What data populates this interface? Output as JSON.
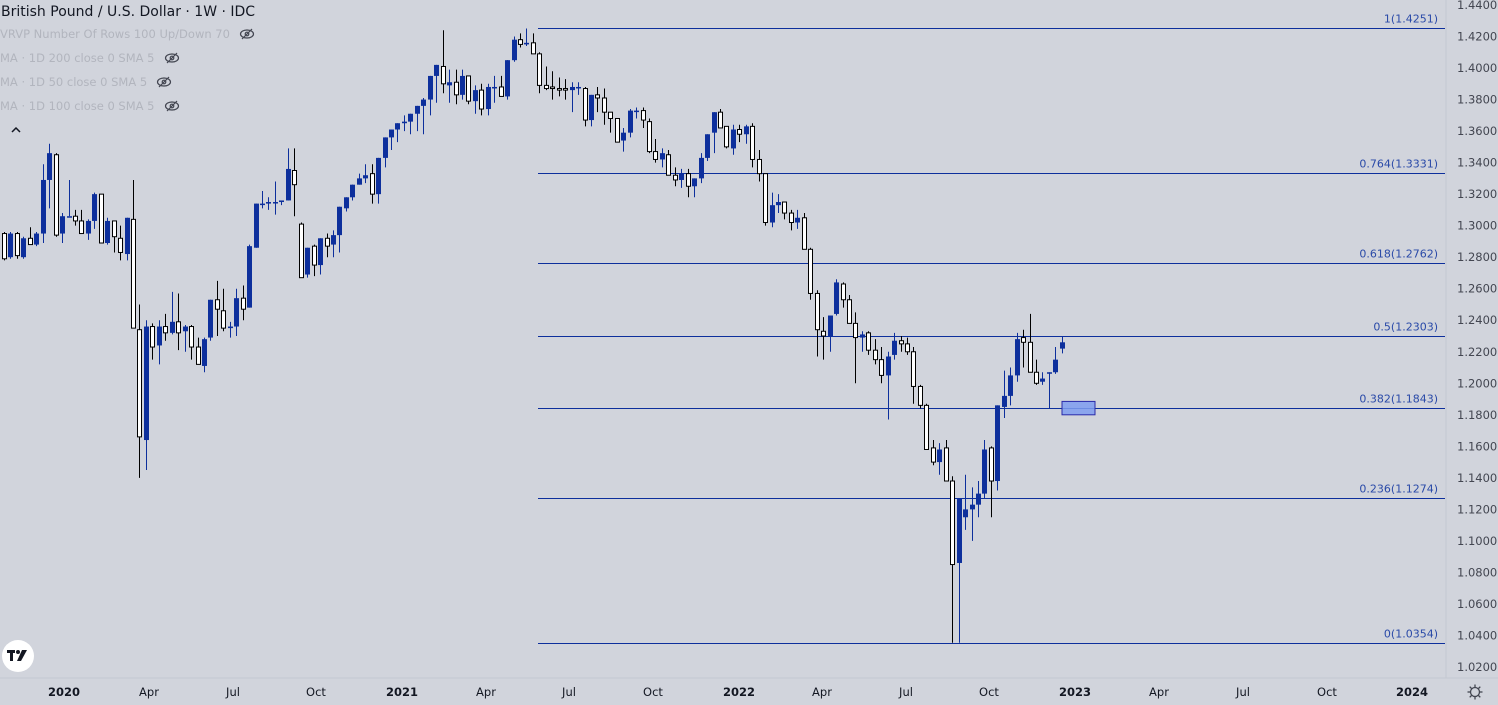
{
  "legend": {
    "title": "British Pound / U.S. Dollar · 1W · IDC",
    "indicators": [
      {
        "label": "VRVP Number Of Rows 100 Up/Down 70",
        "icon": "eye-hidden-icon"
      },
      {
        "label": "MA · 1D 200 close 0 SMA 5",
        "icon": "eye-hidden-icon"
      },
      {
        "label": "MA · 1D 50 close 0 SMA 5",
        "icon": "eye-hidden-icon"
      },
      {
        "label": "MA · 1D 100 close 0 SMA 5",
        "icon": "eye-hidden-icon"
      }
    ]
  },
  "colors": {
    "background": "#d1d4dc",
    "up_candle": "#0d2f9c",
    "down_candle_fill": "#ffffff",
    "down_candle_border": "#000000",
    "fib_line": "#0d2f9c",
    "fib_label": "#2a4aa8",
    "axis_text": "#434651",
    "zone_fill": "#7f9cf0",
    "zone_border": "#2a2aa8"
  },
  "chart_data": {
    "type": "candlestick",
    "title": "British Pound / U.S. Dollar · 1W · IDC",
    "xlabel": "",
    "ylabel": "",
    "ylim": [
      1.02,
      1.44
    ],
    "grid": false,
    "price_ticks": [
      "1.4400",
      "1.4200",
      "1.4000",
      "1.3800",
      "1.3600",
      "1.3400",
      "1.3200",
      "1.3000",
      "1.2800",
      "1.2600",
      "1.2400",
      "1.2200",
      "1.2000",
      "1.1800",
      "1.1600",
      "1.1400",
      "1.1200",
      "1.1000",
      "1.0800",
      "1.0600",
      "1.0400",
      "1.0200"
    ],
    "time_ticks": [
      {
        "label": "2020",
        "x": 64,
        "bold": true
      },
      {
        "label": "Apr",
        "x": 149,
        "bold": false
      },
      {
        "label": "Jul",
        "x": 233,
        "bold": false
      },
      {
        "label": "Oct",
        "x": 316,
        "bold": false
      },
      {
        "label": "2021",
        "x": 402,
        "bold": true
      },
      {
        "label": "Apr",
        "x": 486,
        "bold": false
      },
      {
        "label": "Jul",
        "x": 569,
        "bold": false
      },
      {
        "label": "Oct",
        "x": 653,
        "bold": false
      },
      {
        "label": "2022",
        "x": 739,
        "bold": true
      },
      {
        "label": "Apr",
        "x": 822,
        "bold": false
      },
      {
        "label": "Jul",
        "x": 906,
        "bold": false
      },
      {
        "label": "Oct",
        "x": 989,
        "bold": false
      },
      {
        "label": "2023",
        "x": 1075,
        "bold": true
      },
      {
        "label": "Apr",
        "x": 1159,
        "bold": false
      },
      {
        "label": "Jul",
        "x": 1243,
        "bold": false
      },
      {
        "label": "Oct",
        "x": 1327,
        "bold": false
      },
      {
        "label": "2024",
        "x": 1412,
        "bold": true
      }
    ],
    "fibonacci": {
      "x_start": 538,
      "x_end": 1445,
      "levels": [
        {
          "ratio": "1",
          "price": 1.4251,
          "label": "1(1.4251)"
        },
        {
          "ratio": "0.764",
          "price": 1.3331,
          "label": "0.764(1.3331)"
        },
        {
          "ratio": "0.618",
          "price": 1.2762,
          "label": "0.618(1.2762)"
        },
        {
          "ratio": "0.5",
          "price": 1.2303,
          "label": "0.5(1.2303)"
        },
        {
          "ratio": "0.382",
          "price": 1.1843,
          "label": "0.382(1.1843)"
        },
        {
          "ratio": "0.236",
          "price": 1.1274,
          "label": "0.236(1.1274)"
        },
        {
          "ratio": "0",
          "price": 1.0354,
          "label": "0(1.0354)"
        }
      ]
    },
    "highlight_zone": {
      "x1": 1062,
      "x2": 1095,
      "price_top": 1.1885,
      "price_bottom": 1.18
    },
    "candle_spacing_px": 6.45,
    "first_candle_x": 4,
    "candles": [
      [
        1.295,
        1.296,
        1.278,
        1.279
      ],
      [
        1.28,
        1.296,
        1.279,
        1.295
      ],
      [
        1.295,
        1.296,
        1.279,
        1.281
      ],
      [
        1.28,
        1.293,
        1.279,
        1.292
      ],
      [
        1.292,
        1.299,
        1.29,
        1.288
      ],
      [
        1.288,
        1.296,
        1.287,
        1.295
      ],
      [
        1.295,
        1.339,
        1.289,
        1.329
      ],
      [
        1.329,
        1.352,
        1.311,
        1.346
      ],
      [
        1.345,
        1.346,
        1.293,
        1.294
      ],
      [
        1.295,
        1.308,
        1.289,
        1.306
      ],
      [
        1.306,
        1.329,
        1.306,
        1.306
      ],
      [
        1.306,
        1.31,
        1.3,
        1.303
      ],
      [
        1.303,
        1.31,
        1.297,
        1.295
      ],
      [
        1.295,
        1.304,
        1.291,
        1.303
      ],
      [
        1.303,
        1.321,
        1.298,
        1.32
      ],
      [
        1.32,
        1.32,
        1.295,
        1.289
      ],
      [
        1.289,
        1.305,
        1.288,
        1.303
      ],
      [
        1.303,
        1.303,
        1.283,
        1.293
      ],
      [
        1.292,
        1.3,
        1.278,
        1.283
      ],
      [
        1.282,
        1.305,
        1.278,
        1.305
      ],
      [
        1.304,
        1.329,
        1.257,
        1.235
      ],
      [
        1.234,
        1.25,
        1.14,
        1.166
      ],
      [
        1.164,
        1.24,
        1.145,
        1.236
      ],
      [
        1.236,
        1.238,
        1.215,
        1.223
      ],
      [
        1.224,
        1.24,
        1.212,
        1.236
      ],
      [
        1.236,
        1.244,
        1.227,
        1.232
      ],
      [
        1.232,
        1.258,
        1.231,
        1.239
      ],
      [
        1.239,
        1.257,
        1.221,
        1.232
      ],
      [
        1.233,
        1.237,
        1.22,
        1.236
      ],
      [
        1.236,
        1.237,
        1.215,
        1.223
      ],
      [
        1.223,
        1.229,
        1.217,
        1.212
      ],
      [
        1.211,
        1.229,
        1.207,
        1.228
      ],
      [
        1.229,
        1.249,
        1.227,
        1.253
      ],
      [
        1.253,
        1.265,
        1.23,
        1.247
      ],
      [
        1.246,
        1.26,
        1.233,
        1.235
      ],
      [
        1.235,
        1.239,
        1.229,
        1.236
      ],
      [
        1.236,
        1.26,
        1.23,
        1.254
      ],
      [
        1.254,
        1.262,
        1.24,
        1.247
      ],
      [
        1.248,
        1.288,
        1.248,
        1.287
      ],
      [
        1.286,
        1.31,
        1.292,
        1.314
      ],
      [
        1.314,
        1.322,
        1.311,
        1.314
      ],
      [
        1.314,
        1.318,
        1.31,
        1.315
      ],
      [
        1.315,
        1.328,
        1.307,
        1.315
      ],
      [
        1.315,
        1.316,
        1.313,
        1.316
      ],
      [
        1.316,
        1.349,
        1.316,
        1.336
      ],
      [
        1.335,
        1.349,
        1.306,
        1.326
      ],
      [
        1.301,
        1.302,
        1.296,
        1.267
      ],
      [
        1.269,
        1.284,
        1.267,
        1.286
      ],
      [
        1.287,
        1.288,
        1.268,
        1.275
      ],
      [
        1.275,
        1.288,
        1.269,
        1.292
      ],
      [
        1.292,
        1.295,
        1.28,
        1.287
      ],
      [
        1.288,
        1.297,
        1.28,
        1.294
      ],
      [
        1.294,
        1.3,
        1.283,
        1.312
      ],
      [
        1.311,
        1.316,
        1.309,
        1.318
      ],
      [
        1.318,
        1.325,
        1.316,
        1.326
      ],
      [
        1.326,
        1.333,
        1.326,
        1.33
      ],
      [
        1.33,
        1.339,
        1.327,
        1.332
      ],
      [
        1.333,
        1.339,
        1.314,
        1.32
      ],
      [
        1.32,
        1.337,
        1.314,
        1.343
      ],
      [
        1.343,
        1.347,
        1.337,
        1.356
      ],
      [
        1.356,
        1.361,
        1.348,
        1.361
      ],
      [
        1.361,
        1.364,
        1.353,
        1.365
      ],
      [
        1.365,
        1.37,
        1.36,
        1.366
      ],
      [
        1.366,
        1.368,
        1.358,
        1.371
      ],
      [
        1.371,
        1.374,
        1.36,
        1.376
      ],
      [
        1.376,
        1.381,
        1.358,
        1.38
      ],
      [
        1.38,
        1.386,
        1.37,
        1.395
      ],
      [
        1.395,
        1.401,
        1.378,
        1.402
      ],
      [
        1.401,
        1.424,
        1.384,
        1.39
      ],
      [
        1.389,
        1.399,
        1.378,
        1.391
      ],
      [
        1.391,
        1.399,
        1.377,
        1.383
      ],
      [
        1.383,
        1.399,
        1.38,
        1.395
      ],
      [
        1.395,
        1.393,
        1.377,
        1.379
      ],
      [
        1.379,
        1.389,
        1.371,
        1.386
      ],
      [
        1.386,
        1.39,
        1.37,
        1.374
      ],
      [
        1.374,
        1.39,
        1.37,
        1.388
      ],
      [
        1.388,
        1.395,
        1.378,
        1.388
      ],
      [
        1.388,
        1.395,
        1.382,
        1.382
      ],
      [
        1.382,
        1.401,
        1.38,
        1.405
      ],
      [
        1.405,
        1.42,
        1.404,
        1.418
      ],
      [
        1.418,
        1.422,
        1.413,
        1.415
      ],
      [
        1.415,
        1.4251,
        1.414,
        1.416
      ],
      [
        1.416,
        1.422,
        1.409,
        1.409
      ],
      [
        1.409,
        1.41,
        1.384,
        1.389
      ],
      [
        1.389,
        1.401,
        1.386,
        1.387
      ],
      [
        1.388,
        1.398,
        1.38,
        1.387
      ],
      [
        1.387,
        1.394,
        1.382,
        1.386
      ],
      [
        1.387,
        1.393,
        1.38,
        1.386
      ],
      [
        1.386,
        1.391,
        1.372,
        1.388
      ],
      [
        1.388,
        1.391,
        1.383,
        1.388
      ],
      [
        1.387,
        1.388,
        1.363,
        1.367
      ],
      [
        1.367,
        1.381,
        1.363,
        1.383
      ],
      [
        1.383,
        1.388,
        1.372,
        1.381
      ],
      [
        1.381,
        1.387,
        1.364,
        1.372
      ],
      [
        1.372,
        1.369,
        1.359,
        1.368
      ],
      [
        1.368,
        1.368,
        1.357,
        1.353
      ],
      [
        1.354,
        1.362,
        1.347,
        1.359
      ],
      [
        1.359,
        1.374,
        1.356,
        1.373
      ],
      [
        1.373,
        1.375,
        1.368,
        1.373
      ],
      [
        1.373,
        1.375,
        1.362,
        1.367
      ],
      [
        1.366,
        1.368,
        1.346,
        1.347
      ],
      [
        1.347,
        1.355,
        1.34,
        1.342
      ],
      [
        1.342,
        1.349,
        1.337,
        1.346
      ],
      [
        1.345,
        1.348,
        1.332,
        1.332
      ],
      [
        1.332,
        1.337,
        1.325,
        1.329
      ],
      [
        1.329,
        1.336,
        1.324,
        1.333
      ],
      [
        1.333,
        1.336,
        1.318,
        1.325
      ],
      [
        1.325,
        1.327,
        1.318,
        1.33
      ],
      [
        1.33,
        1.346,
        1.327,
        1.343
      ],
      [
        1.343,
        1.352,
        1.341,
        1.358
      ],
      [
        1.359,
        1.369,
        1.346,
        1.372
      ],
      [
        1.372,
        1.374,
        1.362,
        1.362
      ],
      [
        1.363,
        1.363,
        1.349,
        1.35
      ],
      [
        1.349,
        1.364,
        1.345,
        1.361
      ],
      [
        1.361,
        1.364,
        1.353,
        1.358
      ],
      [
        1.358,
        1.364,
        1.352,
        1.363
      ],
      [
        1.363,
        1.365,
        1.337,
        1.342
      ],
      [
        1.342,
        1.348,
        1.328,
        1.333
      ],
      [
        1.333,
        1.331,
        1.3,
        1.302
      ],
      [
        1.302,
        1.321,
        1.299,
        1.313
      ],
      [
        1.313,
        1.32,
        1.308,
        1.315
      ],
      [
        1.315,
        1.315,
        1.304,
        1.308
      ],
      [
        1.308,
        1.31,
        1.297,
        1.302
      ],
      [
        1.302,
        1.31,
        1.298,
        1.305
      ],
      [
        1.305,
        1.308,
        1.285,
        1.285
      ],
      [
        1.285,
        1.286,
        1.253,
        1.257
      ],
      [
        1.257,
        1.259,
        1.217,
        1.234
      ],
      [
        1.233,
        1.242,
        1.215,
        1.23
      ],
      [
        1.23,
        1.234,
        1.22,
        1.243
      ],
      [
        1.244,
        1.266,
        1.243,
        1.264
      ],
      [
        1.263,
        1.264,
        1.248,
        1.253
      ],
      [
        1.253,
        1.256,
        1.241,
        1.238
      ],
      [
        1.238,
        1.245,
        1.2,
        1.229
      ],
      [
        1.229,
        1.233,
        1.22,
        1.231
      ],
      [
        1.232,
        1.233,
        1.218,
        1.221
      ],
      [
        1.221,
        1.228,
        1.212,
        1.215
      ],
      [
        1.215,
        1.223,
        1.2,
        1.205
      ],
      [
        1.205,
        1.22,
        1.177,
        1.217
      ],
      [
        1.218,
        1.232,
        1.215,
        1.227
      ],
      [
        1.227,
        1.23,
        1.22,
        1.225
      ],
      [
        1.225,
        1.229,
        1.218,
        1.22
      ],
      [
        1.22,
        1.223,
        1.187,
        1.198
      ],
      [
        1.198,
        1.199,
        1.184,
        1.186
      ],
      [
        1.186,
        1.187,
        1.176,
        1.158
      ],
      [
        1.159,
        1.164,
        1.148,
        1.15
      ],
      [
        1.15,
        1.162,
        1.142,
        1.158
      ],
      [
        1.159,
        1.164,
        1.145,
        1.138
      ],
      [
        1.138,
        1.141,
        1.0354,
        1.085
      ],
      [
        1.086,
        1.123,
        1.0354,
        1.127
      ],
      [
        1.115,
        1.142,
        1.107,
        1.12
      ],
      [
        1.12,
        1.134,
        1.1,
        1.123
      ],
      [
        1.123,
        1.138,
        1.115,
        1.13
      ],
      [
        1.13,
        1.164,
        1.127,
        1.158
      ],
      [
        1.159,
        1.16,
        1.115,
        1.138
      ],
      [
        1.138,
        1.186,
        1.132,
        1.186
      ],
      [
        1.185,
        1.208,
        1.178,
        1.192
      ],
      [
        1.192,
        1.21,
        1.186,
        1.205
      ],
      [
        1.205,
        1.232,
        1.201,
        1.228
      ],
      [
        1.229,
        1.234,
        1.21,
        1.226
      ],
      [
        1.226,
        1.244,
        1.217,
        1.207
      ],
      [
        1.207,
        1.215,
        1.199,
        1.2
      ],
      [
        1.201,
        1.207,
        1.199,
        1.203
      ],
      [
        1.207,
        1.207,
        1.184,
        1.207
      ],
      [
        1.207,
        1.223,
        1.206,
        1.215
      ],
      [
        1.222,
        1.23,
        1.219,
        1.226
      ]
    ]
  },
  "footer": {
    "logo": "tradingview-logo",
    "settings_icon": "settings-gear-icon"
  }
}
